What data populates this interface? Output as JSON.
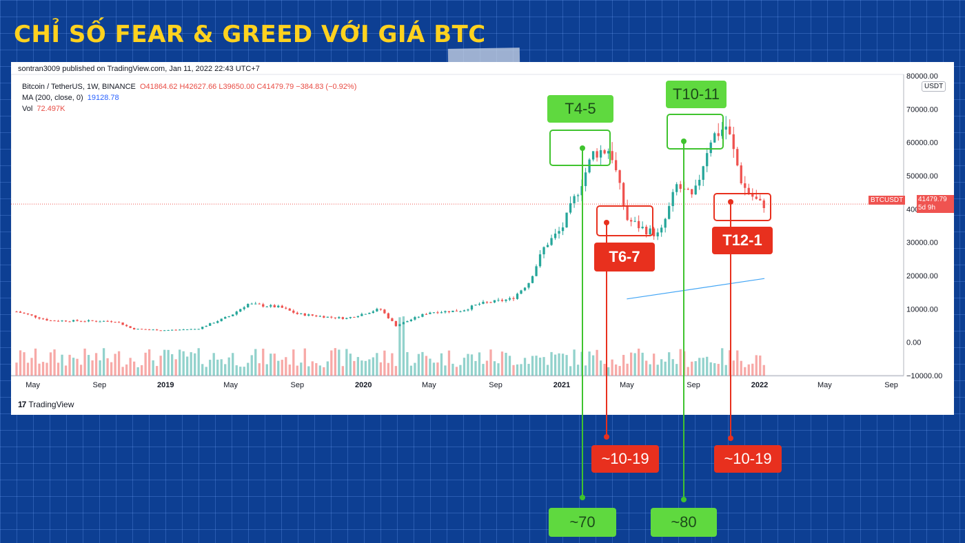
{
  "title": "CHỈ SỐ FEAR & GREED VỚI GIÁ BTC",
  "published": "sontran3009 published on TradingView.com, Jan 11, 2022 22:43 UTC+7",
  "legend": {
    "symbol": "Bitcoin / TetherUS, 1W, BINANCE",
    "ohlc": "O41864.62 H42627.66 L39650.00 C41479.79 −384.83 (−0.92%)",
    "ma_label": "MA (200, close, 0)",
    "ma_value": "19128.78",
    "vol_label": "Vol",
    "vol_value": "72.497K"
  },
  "currency": "USDT",
  "price_badge": "41479.79",
  "price_badge_time": "5d 9h",
  "symbol_badge": "BTCUSDT",
  "brand": "TradingView",
  "colors": {
    "up": "#26a69a",
    "down": "#ef5350",
    "ma": "#42a5f5",
    "greed": "#5fd93f",
    "fear": "#e8301e",
    "background": "#0d3f93",
    "title": "#ffd21f"
  },
  "annotations": {
    "t45": "T4-5",
    "t1011": "T10-11",
    "t67": "T6-7",
    "t121": "T12-1",
    "fg_t67": "~10-19",
    "fg_t121": "~10-19",
    "fg_t45": "~70",
    "fg_t1011": "~80"
  },
  "chart_data": {
    "type": "candlestick",
    "title": "",
    "y_ticks": [
      "80000.00",
      "70000.00",
      "60000.00",
      "50000.00",
      "40000.00",
      "30000.00",
      "20000.00",
      "10000.00",
      "0.00",
      "−10000.00"
    ],
    "x_ticks": [
      "May",
      "Sep",
      "2019",
      "May",
      "Sep",
      "2020",
      "May",
      "Sep",
      "2021",
      "May",
      "Sep",
      "2022",
      "May",
      "Sep"
    ],
    "ylim": [
      -10000,
      80000
    ],
    "last_price": 41479.79,
    "ma200_last": 19128.78,
    "grid": true,
    "close_path": [
      [
        "2018-04",
        9200
      ],
      [
        "2018-06",
        6500
      ],
      [
        "2018-08",
        6400
      ],
      [
        "2018-10",
        6300
      ],
      [
        "2018-11",
        4000
      ],
      [
        "2019-01",
        3600
      ],
      [
        "2019-03",
        4000
      ],
      [
        "2019-05",
        8000
      ],
      [
        "2019-06",
        11500
      ],
      [
        "2019-08",
        10500
      ],
      [
        "2019-09",
        8500
      ],
      [
        "2019-11",
        7500
      ],
      [
        "2019-12",
        7200
      ],
      [
        "2020-02",
        10000
      ],
      [
        "2020-03",
        5000
      ],
      [
        "2020-05",
        9000
      ],
      [
        "2020-07",
        9500
      ],
      [
        "2020-08",
        11500
      ],
      [
        "2020-10",
        13000
      ],
      [
        "2020-11",
        18000
      ],
      [
        "2020-12",
        29000
      ],
      [
        "2021-01",
        34000
      ],
      [
        "2021-02",
        46000
      ],
      [
        "2021-03",
        57000
      ],
      [
        "2021-04",
        58000
      ],
      [
        "2021-05",
        37000
      ],
      [
        "2021-06",
        34000
      ],
      [
        "2021-07",
        32000
      ],
      [
        "2021-08",
        47000
      ],
      [
        "2021-09",
        43000
      ],
      [
        "2021-10",
        61000
      ],
      [
        "2021-11",
        65000
      ],
      [
        "2021-12",
        47000
      ],
      [
        "2022-01",
        41480
      ]
    ],
    "ma200": [
      [
        "2021-05",
        13000
      ],
      [
        "2022-01",
        19128.78
      ]
    ]
  }
}
